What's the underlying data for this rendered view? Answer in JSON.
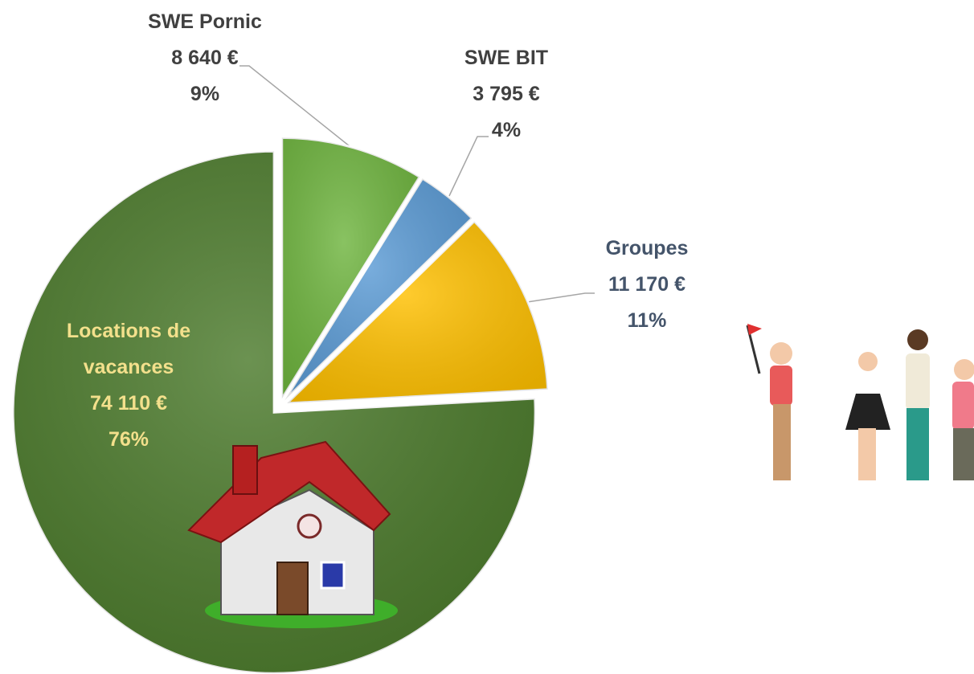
{
  "chart_data": {
    "type": "pie",
    "categories": [
      "SWE Pornic",
      "SWE BIT",
      "Groupes",
      "Locations de vacances"
    ],
    "values": [
      8640,
      3795,
      11170,
      74110
    ],
    "value_labels": [
      "8 640 €",
      "3 795 €",
      "11 170 €",
      "74 110 €"
    ],
    "percentages": [
      9,
      4,
      11,
      76
    ],
    "percentage_labels": [
      "9%",
      "4%",
      "11%",
      "76%"
    ],
    "colors": [
      "#6fb53f",
      "#5b9bd5",
      "#ffc000",
      "#4b7a2b"
    ]
  }
}
